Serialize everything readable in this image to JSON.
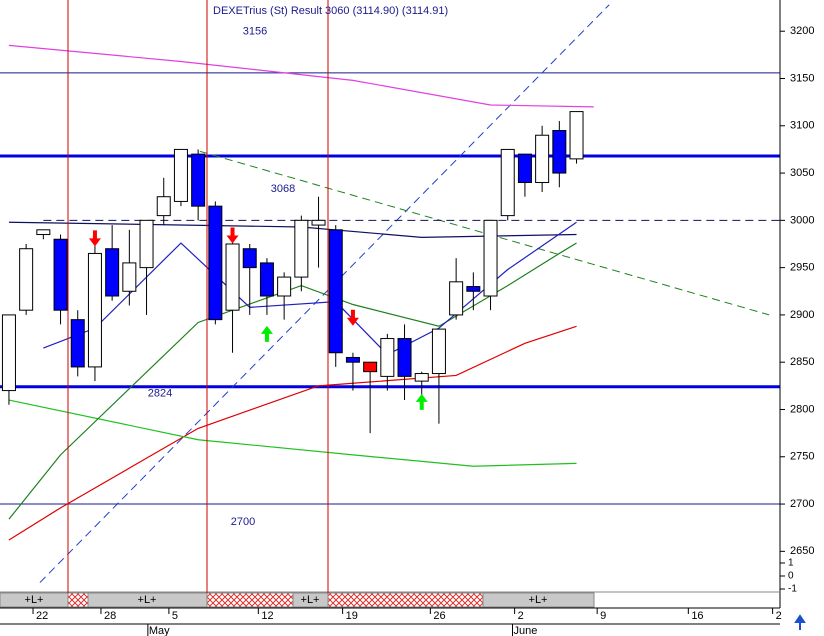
{
  "chart_data": {
    "type": "candlestick",
    "title": "DEXETrius (St) Result 3060 (3114.90) (3114.91)",
    "xlim": [
      -0.52,
      44.83
    ],
    "ylim": [
      2607,
      3233
    ],
    "yticks": [
      3200,
      3150,
      3100,
      3050,
      3000,
      2950,
      2900,
      2850,
      2800,
      2750,
      2700,
      2650
    ],
    "xticks": [
      {
        "value": 1.4,
        "label": "22"
      },
      {
        "value": 5.35,
        "label": "28"
      },
      {
        "value": 9.3,
        "label": "5"
      },
      {
        "value": 14.5,
        "label": "12"
      },
      {
        "value": 19.4,
        "label": "19"
      },
      {
        "value": 24.5,
        "label": "26"
      },
      {
        "value": 29.4,
        "label": "2"
      },
      {
        "value": 34.2,
        "label": "9"
      },
      {
        "value": 39.5,
        "label": "16"
      },
      {
        "value": 44.4,
        "label": "2"
      }
    ],
    "months": [
      {
        "value": 8.6,
        "label": "May"
      },
      {
        "value": 29.8,
        "label": "June"
      }
    ],
    "candles": {
      "open": [
        2820,
        2905,
        2985,
        2980,
        2895,
        2845,
        2970,
        2925,
        2950,
        3005,
        3020,
        3070,
        3015,
        2905,
        2970,
        2955,
        2920,
        2940,
        2995,
        2990,
        2855,
        2850,
        2835,
        2875,
        2830,
        2838,
        2900,
        2930,
        2920,
        3005,
        3070,
        3040,
        3095,
        3065
      ],
      "high": [
        2900,
        2975,
        2990,
        2985,
        2905,
        2975,
        2995,
        2990,
        3000,
        3045,
        3075,
        3075,
        3020,
        2985,
        2975,
        2960,
        2945,
        3005,
        3025,
        2995,
        2860,
        2850,
        2880,
        2890,
        2840,
        2885,
        2960,
        2945,
        3000,
        3075,
        3070,
        3100,
        3105,
        3115
      ],
      "low": [
        2805,
        2900,
        2980,
        2890,
        2835,
        2830,
        2915,
        2910,
        2900,
        2995,
        3015,
        3000,
        2890,
        2860,
        2900,
        2900,
        2895,
        2925,
        2950,
        2845,
        2820,
        2775,
        2820,
        2810,
        2810,
        2785,
        2895,
        2905,
        2905,
        3000,
        3025,
        3030,
        3035,
        3060
      ],
      "close": [
        2900,
        2970,
        2990,
        2905,
        2845,
        2965,
        2920,
        2955,
        3000,
        3025,
        3075,
        3015,
        2895,
        2975,
        2950,
        2920,
        2940,
        3000,
        3000,
        2860,
        2850,
        2840,
        2875,
        2835,
        2838,
        2885,
        2935,
        2925,
        3000,
        3075,
        3040,
        3090,
        3050,
        3115
      ],
      "colors": [
        "#ffffff",
        "#ffffff",
        "#ffffff",
        "#0000ff",
        "#0000ff",
        "#ffffff",
        "#0000ff",
        "#ffffff",
        "#ffffff",
        "#ffffff",
        "#ffffff",
        "#0000ff",
        "#0000ff",
        "#ffffff",
        "#0000ff",
        "#0000ff",
        "#ffffff",
        "#ffffff",
        "#ffffff",
        "#0000ff",
        "#0000ff",
        "#ff0000",
        "#ffffff",
        "#0000ff",
        "#ffffff",
        "#ffffff",
        "#ffffff",
        "#0000ff",
        "#ffffff",
        "#ffffff",
        "#0000ff",
        "#ffffff",
        "#0000ff",
        "#ffffff"
      ]
    },
    "series": [
      {
        "color": "#e040e0",
        "x": [
          0,
          10,
          20,
          28,
          34
        ],
        "values": [
          3185,
          3168,
          3148,
          3122,
          3120
        ]
      },
      {
        "color": "#101060",
        "x": [
          0,
          17,
          24,
          33
        ],
        "values": [
          2998,
          2993,
          2982,
          2985
        ]
      },
      {
        "color": "#e00000",
        "x": [
          0,
          3,
          11,
          18,
          26,
          30,
          33
        ],
        "values": [
          2662,
          2696,
          2780,
          2825,
          2836,
          2870,
          2888
        ]
      },
      {
        "color": "#20c020",
        "x": [
          0,
          11,
          20,
          27,
          33
        ],
        "values": [
          2810,
          2768,
          2752,
          2740,
          2743
        ]
      },
      {
        "color": "#208020",
        "x": [
          0,
          3,
          11,
          17,
          20,
          25,
          29,
          32,
          33
        ],
        "values": [
          2684,
          2752,
          2892,
          2931,
          2911,
          2888,
          2931,
          2965,
          2976
        ]
      },
      {
        "color": "#2020c0",
        "x": [
          2,
          5,
          10,
          14,
          19,
          22,
          25,
          29,
          33
        ],
        "values": [
          2865,
          2886,
          2976,
          2908,
          2914,
          2858,
          2886,
          2948,
          2998
        ]
      }
    ],
    "trendlines": [
      {
        "color": "#2040d0",
        "x": [
          1.8,
          34.9
        ],
        "values": [
          2617,
          3228
        ]
      },
      {
        "color": "#208020",
        "x": [
          11.1,
          44.2
        ],
        "values": [
          3073,
          2900
        ]
      },
      {
        "color": "#101060",
        "x": [
          2,
          44.8
        ],
        "values": [
          3000,
          3000
        ]
      }
    ],
    "levels": [
      {
        "value": 3156,
        "label": "3156",
        "color": "#1a1a8c",
        "width": 1
      },
      {
        "value": 3068,
        "label": "3068",
        "color": "#0000e0",
        "width": 3
      },
      {
        "value": 2824,
        "label": "2824",
        "color": "#0000e0",
        "width": 3
      },
      {
        "value": 2700,
        "label": "2700",
        "color": "#1a1a8c",
        "width": 1
      }
    ],
    "signals": [
      {
        "x": 5,
        "y": 2981,
        "color": "#ff0000"
      },
      {
        "x": 13,
        "y": 2984,
        "color": "#ff0000"
      },
      {
        "x": 20,
        "y": 2897,
        "color": "#ff0000"
      },
      {
        "x": 15,
        "y": 2880,
        "color": "#00ee00"
      },
      {
        "x": 24,
        "y": 2808,
        "color": "#00ee00"
      }
    ],
    "indicator_ticks": [
      1,
      0,
      -1
    ],
    "band_labels": [
      "+L+",
      "+L+",
      "+L+",
      "+L+"
    ]
  }
}
